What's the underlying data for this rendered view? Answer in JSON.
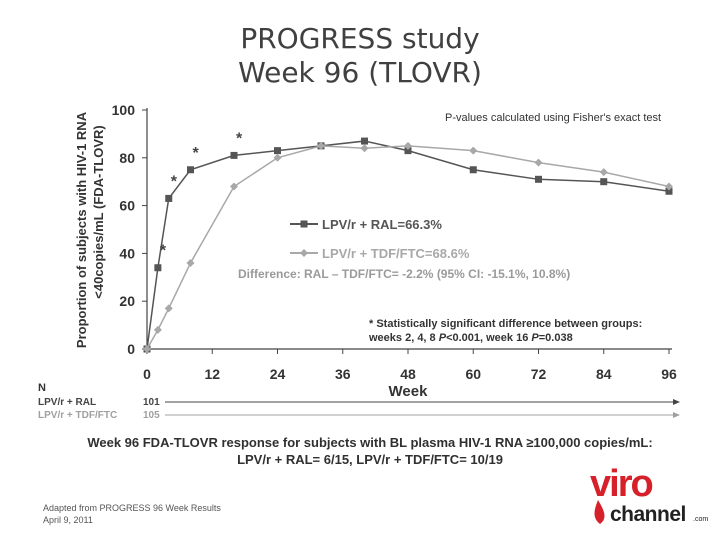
{
  "title_line1": "PROGRESS study",
  "title_line2": "Week 96 (TLOVR)",
  "footnote_line1": "Adapted from PROGRESS 96 Week Results",
  "footnote_line2": "April 9, 2011",
  "bottom_line1": "Week 96 FDA-TLOVR response for subjects with BL plasma HIV-1 RNA  ≥100,000 copies/mL:",
  "bottom_line2": "LPV/r + RAL= 6/15, LPV/r + TDF/FTC= 10/19",
  "logo": {
    "word1": "viro",
    "word2": "channel",
    "suffix": ".com",
    "color": "#d6202a"
  },
  "chart_data": {
    "type": "line",
    "ylabel_line1": "Proportion of subjects with HIV-1 RNA",
    "ylabel_line2": "<40copies/mL (FDA-TLOVR)",
    "xlabel": "Week",
    "xlim": [
      0,
      96
    ],
    "ylim": [
      0,
      100
    ],
    "xticks": [
      0,
      12,
      24,
      36,
      48,
      60,
      72,
      84,
      96
    ],
    "yticks": [
      0,
      20,
      40,
      60,
      80,
      100
    ],
    "x": [
      0,
      2,
      4,
      8,
      16,
      24,
      32,
      40,
      48,
      60,
      72,
      84,
      96
    ],
    "series": [
      {
        "name": "LPV/r + RAL=66.3%",
        "color": "#555555",
        "marker": "square",
        "values": [
          0,
          34,
          63,
          75,
          81,
          83,
          85,
          87,
          83,
          75,
          71,
          70,
          66
        ]
      },
      {
        "name": "LPV/r + TDF/FTC=68.6%",
        "color": "#a8a8a8",
        "marker": "diamond",
        "values": [
          0,
          8,
          17,
          36,
          68,
          80,
          85,
          84,
          85,
          83,
          78,
          74,
          68
        ]
      }
    ],
    "significance": [
      {
        "x": 2,
        "y": 34,
        "label": "*"
      },
      {
        "x": 4,
        "y": 63,
        "label": "*"
      },
      {
        "x": 8,
        "y": 75,
        "label": "*"
      },
      {
        "x": 16,
        "y": 81,
        "label": "*"
      }
    ],
    "pvalue_note": "P-values calculated using Fisher's exact test",
    "difference_note": "Difference: RAL – TDF/FTC= -2.2% (95% CI: -15.1%, 10.8%)",
    "sig_note_line1": "* Statistically significant difference between groups:",
    "sig_note_line2_part1": "weeks 2, 4, 8  ",
    "sig_note_line2_part2": "P",
    "sig_note_line2_part3": "<0.001, week 16  ",
    "sig_note_line2_part4": "P",
    "sig_note_line2_part5": "=0.038",
    "n_table": {
      "header": "N",
      "rows": [
        {
          "label": "LPV/r + RAL",
          "value": "101",
          "color": "#444444"
        },
        {
          "label": "LPV/r + TDF/FTC",
          "value": "105",
          "color": "#a0a0a0"
        }
      ]
    }
  }
}
